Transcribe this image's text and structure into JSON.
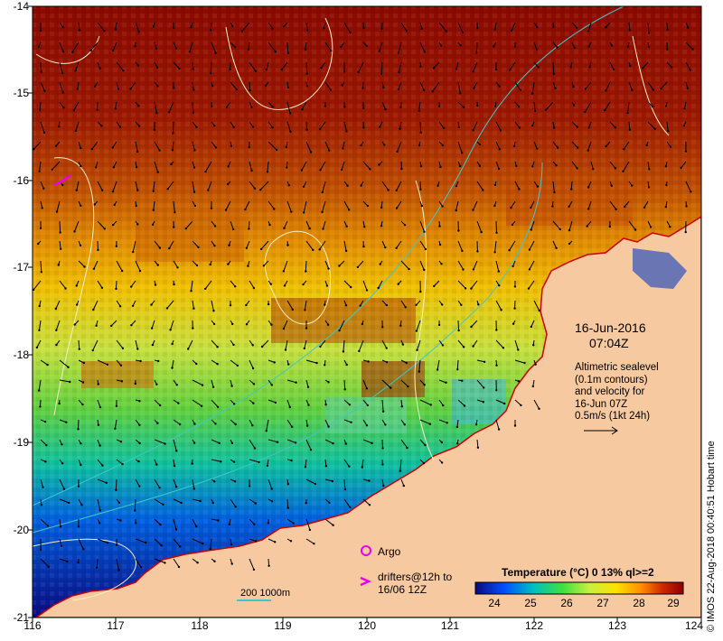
{
  "map": {
    "date": "16-Jun-2016",
    "time": "07:04Z",
    "info_lines": [
      "Altimetric sealevel",
      "(0.1m contours)",
      "and velocity for",
      "16-Jun 07Z",
      "0.5m/s (1kt 24h)"
    ],
    "y_ticks": [
      "-14",
      "-15",
      "-16",
      "-17",
      "-18",
      "-19",
      "-20",
      "-21"
    ],
    "x_ticks": [
      "116",
      "117",
      "118",
      "119",
      "120",
      "121",
      "122",
      "123",
      "124"
    ],
    "legend": {
      "title": "Temperature (°C) 0 13% ql>=2",
      "ticks": [
        "24",
        "25",
        "26",
        "27",
        "28",
        "29"
      ],
      "colors": [
        "#0a0a7a",
        "#0050ff",
        "#00c0c0",
        "#40e040",
        "#c8f040",
        "#ffe000",
        "#ff8c00",
        "#cc2a00",
        "#8b0000"
      ]
    },
    "argo_label": "Argo",
    "drifters_label_line1": "drifters@12h to",
    "drifters_label_line2": "16/06 12Z",
    "scale_label": "200  1000m",
    "credit": "© IMOS 22-Aug-2018 00:40:51 Hobart time",
    "colors": {
      "land": "#f7c9a0",
      "contour": "#f4f0c8",
      "isobath": "#40c8c8",
      "argo": "#e800e8",
      "coast": "#cc0000"
    }
  }
}
